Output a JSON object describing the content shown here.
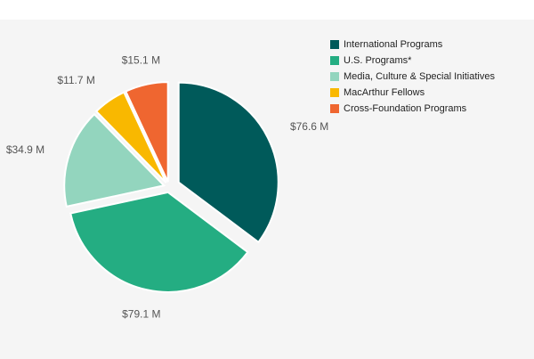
{
  "chart_data": {
    "type": "pie",
    "title": "",
    "unit": "$M",
    "slices": [
      {
        "name": "International Programs",
        "value": 76.6,
        "label": "$76.6 M",
        "color": "#005a5a"
      },
      {
        "name": "U.S. Programs*",
        "value": 79.1,
        "label": "$79.1 M",
        "color": "#24ad82"
      },
      {
        "name": "Media, Culture & Special Initiatives",
        "value": 34.9,
        "label": "$34.9 M",
        "color": "#93d5be"
      },
      {
        "name": "MacArthur Fellows",
        "value": 11.7,
        "label": "$11.7 M",
        "color": "#f9b800"
      },
      {
        "name": "Cross-Foundation Programs",
        "value": 15.1,
        "label": "$15.1 M",
        "color": "#ef6630"
      }
    ],
    "legend_position": "top-right"
  }
}
